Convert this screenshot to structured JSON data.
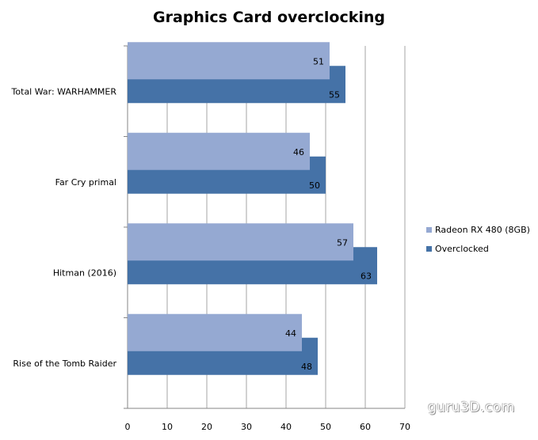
{
  "chart_data": {
    "type": "bar",
    "orientation": "horizontal",
    "title": "Graphics Card overclocking",
    "categories": [
      "Total War: WARHAMMER",
      "Far Cry primal",
      "Hitman  (2016)",
      "Rise of the Tomb  Raider"
    ],
    "series": [
      {
        "name": "Radeon RX 480 (8GB)",
        "color": "#95a9d2",
        "values": [
          51,
          46,
          57,
          44
        ]
      },
      {
        "name": "Overclocked",
        "color": "#4572a7",
        "values": [
          55,
          50,
          63,
          48
        ]
      }
    ],
    "xlim": [
      0,
      70
    ],
    "xticks": [
      0,
      10,
      20,
      30,
      40,
      50,
      60,
      70
    ],
    "grid": true,
    "legend_position": "right"
  },
  "watermark": "guru3D.com"
}
